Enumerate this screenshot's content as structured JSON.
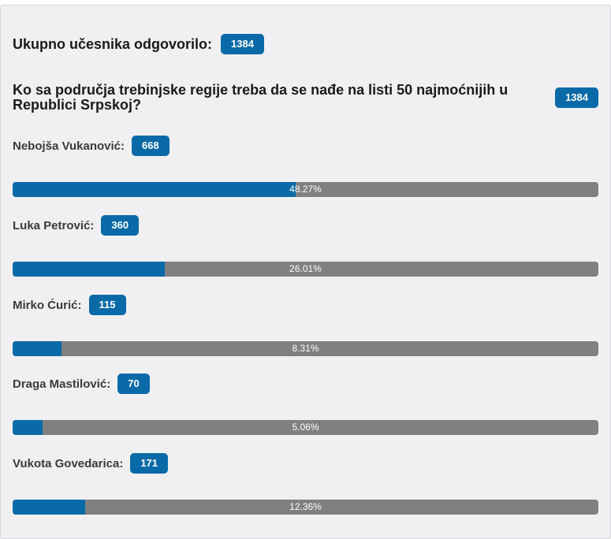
{
  "poll": {
    "total_label": "Ukupno učesnika odgovorilo:",
    "total_count": "1384",
    "question": "Ko sa područja trebinjske regije treba da se nađe na listi 50 najmoćnijih u Republici Srpskoj?",
    "question_count": "1384",
    "answers": [
      {
        "label": "Nebojša Vukanović:",
        "count": "668",
        "percent_text": "48.27%",
        "percent": 48.27
      },
      {
        "label": "Luka Petrović:",
        "count": "360",
        "percent_text": "26.01%",
        "percent": 26.01
      },
      {
        "label": "Mirko Ćurić:",
        "count": "115",
        "percent_text": "8.31%",
        "percent": 8.31
      },
      {
        "label": "Draga Mastilović:",
        "count": "70",
        "percent_text": "5.06%",
        "percent": 5.06
      },
      {
        "label": "Vukota Govedarica:",
        "count": "171",
        "percent_text": "12.36%",
        "percent": 12.36
      }
    ]
  },
  "colors": {
    "accent": "#0a6aa8",
    "track": "#808080",
    "panel_bg": "#f0f0f3"
  }
}
